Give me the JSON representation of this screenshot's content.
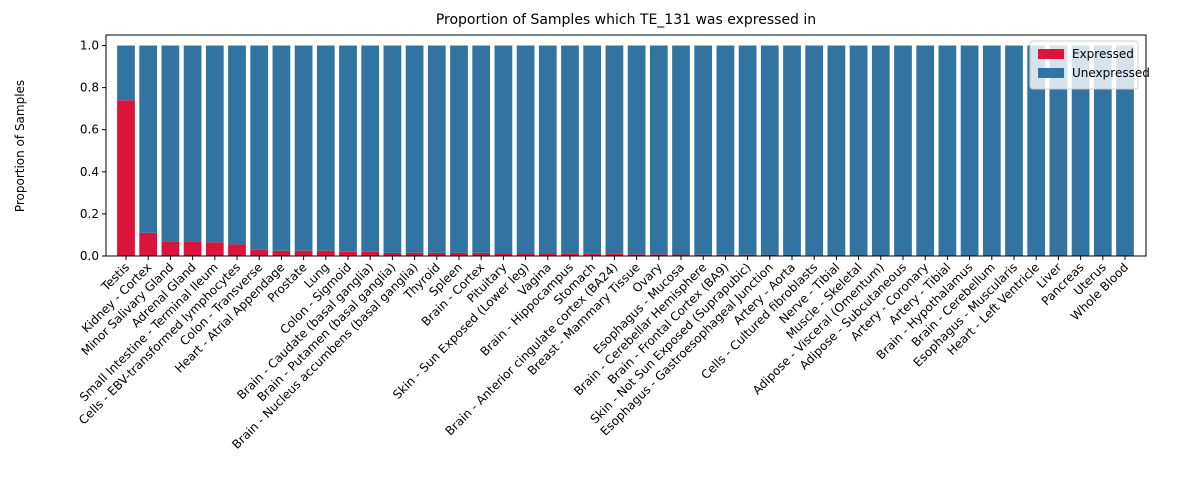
{
  "chart_data": {
    "type": "stacked_bar",
    "title": "Proportion of Samples which TE_131 was expressed in",
    "y_label": "Proportion of Samples",
    "categories": [
      "Testis",
      "Kidney - Cortex",
      "Minor Salivary Gland",
      "Adrenal Gland",
      "Small Intestine - Terminal Ileum",
      "Cells - EBV-transformed lymphocytes",
      "Colon - Transverse",
      "Heart - Atrial Appendage",
      "Prostate",
      "Lung",
      "Colon - Sigmoid",
      "Brain - Caudate (basal ganglia)",
      "Brain - Putamen (basal ganglia)",
      "Brain - Nucleus accumbens (basal ganglia)",
      "Thyroid",
      "Spleen",
      "Brain - Cortex",
      "Pituitary",
      "Skin - Sun Exposed (Lower leg)",
      "Vagina",
      "Brain - Hippocampus",
      "Stomach",
      "Brain - Anterior cingulate cortex (BA24)",
      "Breast - Mammary Tissue",
      "Ovary",
      "Esophagus - Mucosa",
      "Brain - Cerebellar Hemisphere",
      "Brain - Frontal Cortex (BA9)",
      "Skin - Not Sun Exposed (Suprapubic)",
      "Esophagus - Gastroesophageal Junction",
      "Artery - Aorta",
      "Cells - Cultured fibroblasts",
      "Nerve - Tibial",
      "Muscle - Skeletal",
      "Adipose - Visceral (Omentum)",
      "Adipose - Subcutaneous",
      "Artery - Coronary",
      "Artery - Tibial",
      "Brain - Hypothalamus",
      "Brain - Cerebellum",
      "Esophagus - Muscularis",
      "Heart - Left Ventricle",
      "Liver",
      "Pancreas",
      "Uterus",
      "Whole Blood"
    ],
    "series": [
      {
        "name": "Expressed",
        "color": "#dc143c",
        "values": [
          0.74,
          0.11,
          0.07,
          0.07,
          0.065,
          0.055,
          0.03,
          0.025,
          0.025,
          0.025,
          0.02,
          0.02,
          0.015,
          0.015,
          0.015,
          0.015,
          0.015,
          0.012,
          0.012,
          0.012,
          0.01,
          0.01,
          0.01,
          0.008,
          0.008,
          0.007,
          0.006,
          0.006,
          0.006,
          0.005,
          0.005,
          0.004,
          0,
          0,
          0,
          0,
          0,
          0,
          0,
          0,
          0,
          0,
          0,
          0,
          0,
          0
        ]
      },
      {
        "name": "Unexpressed",
        "color": "#3274a1",
        "values": [
          0.26,
          0.89,
          0.93,
          0.93,
          0.935,
          0.945,
          0.97,
          0.975,
          0.975,
          0.975,
          0.98,
          0.98,
          0.985,
          0.985,
          0.985,
          0.985,
          0.985,
          0.988,
          0.988,
          0.988,
          0.99,
          0.99,
          0.99,
          0.992,
          0.992,
          0.993,
          0.994,
          0.994,
          0.994,
          0.995,
          0.995,
          0.996,
          1,
          1,
          1,
          1,
          1,
          1,
          1,
          1,
          1,
          1,
          1,
          1,
          1,
          1
        ]
      }
    ],
    "ylim": [
      0,
      1.05
    ],
    "yticks": [
      {
        "value": 0,
        "label": "0.0"
      },
      {
        "value": 0.2,
        "label": "0.2"
      },
      {
        "value": 0.4,
        "label": "0.4"
      },
      {
        "value": 0.6,
        "label": "0.6"
      },
      {
        "value": 0.8,
        "label": "0.8"
      },
      {
        "value": 1,
        "label": "1.0"
      }
    ],
    "legend": "upper right"
  }
}
